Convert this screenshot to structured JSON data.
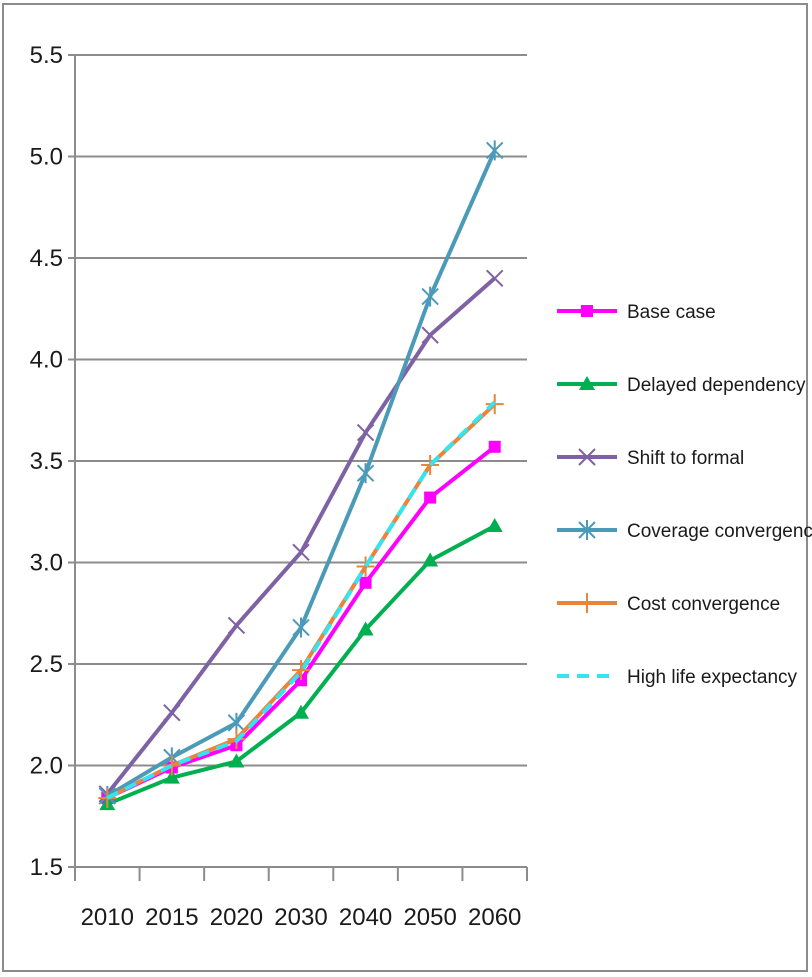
{
  "chart_data": {
    "type": "line",
    "title": "",
    "xlabel": "",
    "ylabel": "",
    "categories": [
      "2010",
      "2015",
      "2020",
      "2030",
      "2040",
      "2050",
      "2060"
    ],
    "ylim": [
      1.5,
      5.5
    ],
    "yticks": [
      "1.5",
      "2.0",
      "2.5",
      "3.0",
      "3.5",
      "4.0",
      "4.5",
      "5.0",
      "5.5"
    ],
    "grid": true,
    "legend_position": "right",
    "series": [
      {
        "name": "Base case",
        "color": "#ff00ff",
        "marker": "square",
        "dashed": false,
        "values": [
          1.84,
          1.99,
          2.1,
          2.42,
          2.9,
          3.32,
          3.57
        ]
      },
      {
        "name": "Delayed dependency",
        "color": "#00b050",
        "marker": "triangle",
        "dashed": false,
        "values": [
          1.81,
          1.94,
          2.02,
          2.26,
          2.67,
          3.01,
          3.18
        ]
      },
      {
        "name": "Shift to formal",
        "color": "#7f62a4",
        "marker": "x",
        "dashed": false,
        "values": [
          1.86,
          2.26,
          2.69,
          3.05,
          3.64,
          4.12,
          4.4
        ]
      },
      {
        "name": "Coverage convergence",
        "color": "#4a9ab8",
        "marker": "star",
        "dashed": false,
        "values": [
          1.85,
          2.04,
          2.21,
          2.68,
          3.44,
          4.31,
          5.03
        ]
      },
      {
        "name": "Cost convergence",
        "color": "#e8843c",
        "marker": "plus",
        "dashed": false,
        "values": [
          1.84,
          2.0,
          2.13,
          2.47,
          2.98,
          3.48,
          3.78
        ]
      },
      {
        "name": "High life expectancy",
        "color": "#33e5f0",
        "marker": "none",
        "dashed": true,
        "values": [
          1.84,
          2.0,
          2.12,
          2.46,
          2.98,
          3.48,
          3.79
        ]
      }
    ]
  }
}
